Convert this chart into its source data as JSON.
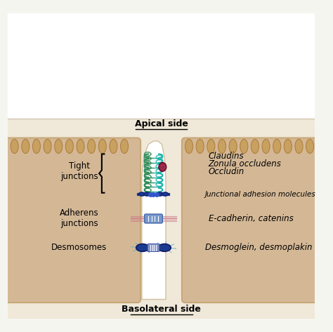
{
  "background_color": "#f5ece0",
  "cell_color": "#d4b896",
  "cell_border_color": "#c8a878",
  "paracellular_space_color": "#ffffff",
  "title_apical": "Apical side",
  "title_basal": "Basolateral side",
  "label_tight": "Tight\njunctions",
  "label_adherens": "Adherens\njunctions",
  "label_desmo": "Desmosomes",
  "right_claudins": "Claudins",
  "right_zonula": "Zonula occludens",
  "right_occludin": "Occludin",
  "right_jam": "Junctional adhesion molecules",
  "right_ecad": "E-cadherin, catenins",
  "right_desmoglein": "Desmoglein, desmoplakin",
  "tight_junction_color": "#2e8b57",
  "tight_junction_color2": "#20b2aa",
  "jam_color": "#1a3a8f",
  "adherens_color": "#cc6688",
  "desmo_color": "#1a3a8f",
  "desmo_filament_color": "#4eb8c8",
  "protein_blob_color": "#8b2040"
}
